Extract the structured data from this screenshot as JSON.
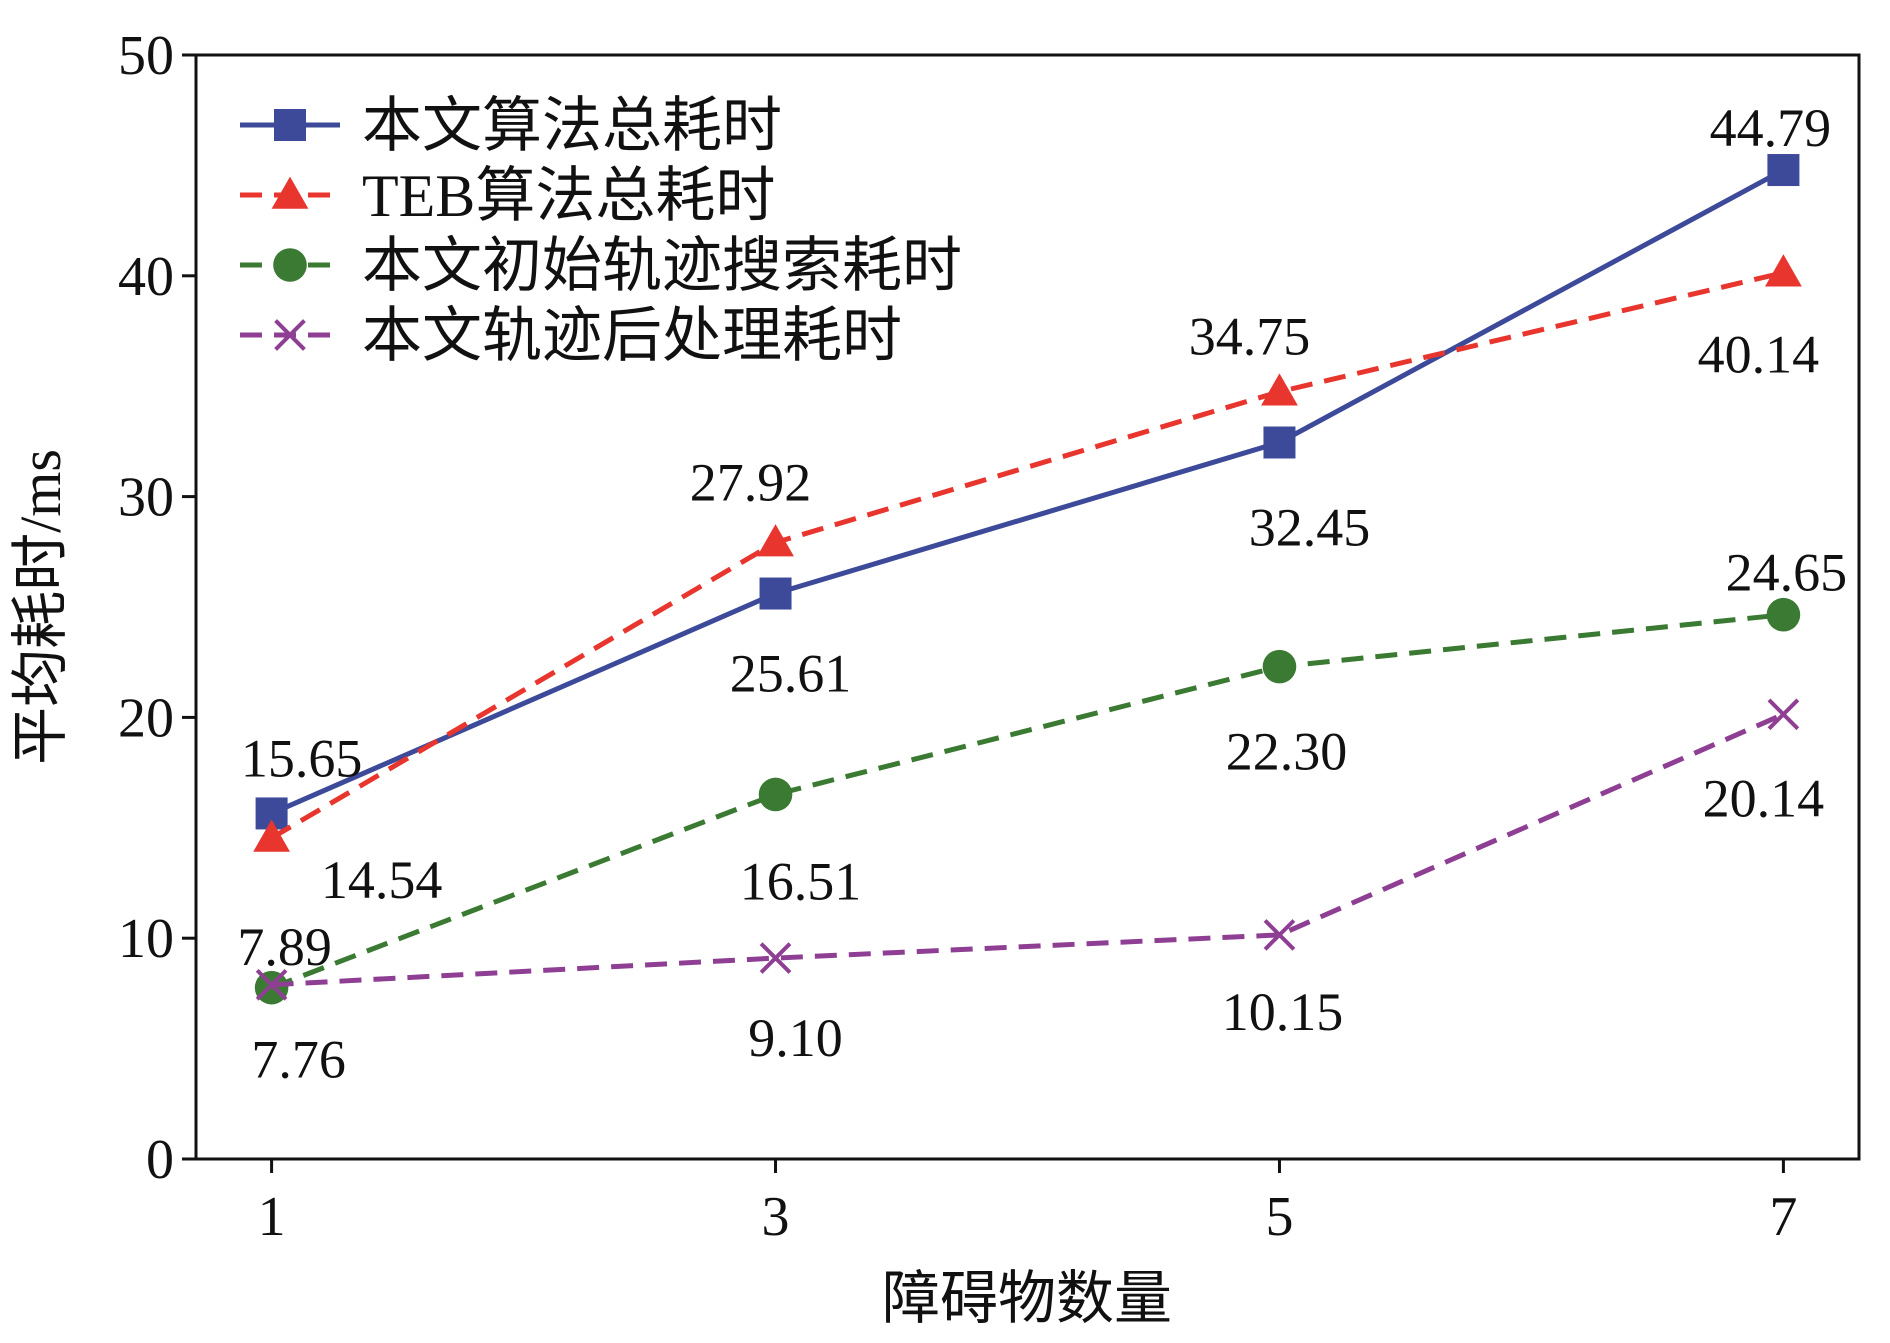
{
  "chart_data": {
    "type": "line",
    "title": "",
    "xlabel": "障碍物数量",
    "ylabel": "平均耗时/ms",
    "x": [
      1,
      3,
      5,
      7
    ],
    "xticks": [
      "1",
      "3",
      "5",
      "7"
    ],
    "yticks": [
      "0",
      "10",
      "20",
      "30",
      "40",
      "50"
    ],
    "xlim": [
      0.7,
      7.3
    ],
    "ylim": [
      0,
      50
    ],
    "grid": false,
    "legend_position": "top-left",
    "series": [
      {
        "name": "本文算法总耗时",
        "values": [
          15.65,
          25.61,
          32.45,
          44.79
        ],
        "labels": [
          "15.65",
          "25.61",
          "32.45",
          "44.79"
        ],
        "color": "#3d4a9a",
        "line_style": "solid",
        "marker": "square"
      },
      {
        "name": "TEB算法总耗时",
        "values": [
          14.54,
          27.92,
          34.75,
          40.14
        ],
        "labels": [
          "14.54",
          "27.92",
          "34.75",
          "40.14"
        ],
        "color": "#e8352e",
        "line_style": "dashed",
        "marker": "triangle"
      },
      {
        "name": "本文初始轨迹搜索耗时",
        "values": [
          7.76,
          16.51,
          22.3,
          24.65
        ],
        "labels": [
          "7.76",
          "16.51",
          "22.30",
          "24.65"
        ],
        "color": "#3b7a32",
        "line_style": "dashed",
        "marker": "circle"
      },
      {
        "name": "本文轨迹后处理耗时",
        "values": [
          7.89,
          9.1,
          10.15,
          20.14
        ],
        "labels": [
          "7.89",
          "9.10",
          "10.15",
          "20.14"
        ],
        "color": "#8e3f93",
        "line_style": "dashed",
        "marker": "x"
      }
    ]
  }
}
